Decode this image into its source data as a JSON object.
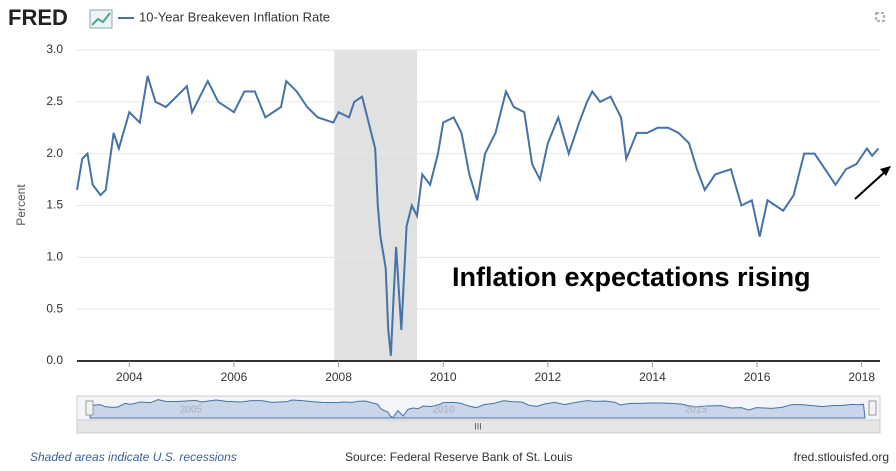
{
  "header": {
    "logo": "FRED",
    "legend": "10-Year Breakeven Inflation Rate"
  },
  "chart_data": {
    "type": "line",
    "title": "10-Year Breakeven Inflation Rate",
    "y_label": "Percent",
    "annotation": "Inflation expectations rising",
    "x": [
      2003.0,
      2003.1,
      2003.2,
      2003.3,
      2003.45,
      2003.55,
      2003.7,
      2003.8,
      2004.0,
      2004.2,
      2004.35,
      2004.5,
      2004.7,
      2004.9,
      2005.1,
      2005.2,
      2005.5,
      2005.7,
      2006.0,
      2006.2,
      2006.4,
      2006.6,
      2006.9,
      2007.0,
      2007.2,
      2007.4,
      2007.6,
      2007.9,
      2008.0,
      2008.2,
      2008.3,
      2008.45,
      2008.6,
      2008.7,
      2008.75,
      2008.8,
      2008.9,
      2008.95,
      2009.0,
      2009.05,
      2009.1,
      2009.2,
      2009.3,
      2009.4,
      2009.5,
      2009.6,
      2009.75,
      2009.9,
      2010.0,
      2010.2,
      2010.35,
      2010.5,
      2010.65,
      2010.8,
      2011.0,
      2011.2,
      2011.35,
      2011.55,
      2011.7,
      2011.85,
      2012.0,
      2012.2,
      2012.4,
      2012.6,
      2012.75,
      2012.85,
      2013.0,
      2013.2,
      2013.4,
      2013.5,
      2013.7,
      2013.9,
      2014.1,
      2014.3,
      2014.5,
      2014.7,
      2014.85,
      2015.0,
      2015.2,
      2015.5,
      2015.7,
      2015.9,
      2016.05,
      2016.2,
      2016.5,
      2016.7,
      2016.9,
      2017.1,
      2017.3,
      2017.5,
      2017.7,
      2017.9,
      2018.1,
      2018.2,
      2018.32
    ],
    "series": [
      {
        "name": "10-Year Breakeven Inflation Rate",
        "color": "#4572a7",
        "values": [
          1.65,
          1.95,
          2.0,
          1.7,
          1.6,
          1.65,
          2.2,
          2.05,
          2.4,
          2.3,
          2.75,
          2.5,
          2.45,
          2.55,
          2.65,
          2.4,
          2.7,
          2.5,
          2.4,
          2.6,
          2.6,
          2.35,
          2.45,
          2.7,
          2.6,
          2.45,
          2.35,
          2.3,
          2.4,
          2.35,
          2.5,
          2.55,
          2.25,
          2.05,
          1.5,
          1.2,
          0.9,
          0.3,
          0.05,
          0.6,
          1.1,
          0.3,
          1.3,
          1.5,
          1.4,
          1.8,
          1.7,
          2.0,
          2.3,
          2.35,
          2.2,
          1.8,
          1.55,
          2.0,
          2.2,
          2.6,
          2.45,
          2.4,
          1.9,
          1.75,
          2.1,
          2.35,
          2.0,
          2.3,
          2.5,
          2.6,
          2.5,
          2.55,
          2.35,
          1.95,
          2.2,
          2.2,
          2.25,
          2.25,
          2.2,
          2.1,
          1.85,
          1.65,
          1.8,
          1.85,
          1.5,
          1.55,
          1.2,
          1.55,
          1.45,
          1.6,
          2.0,
          2.0,
          1.85,
          1.7,
          1.85,
          1.9,
          2.05,
          1.98,
          2.05
        ]
      }
    ],
    "xlim": [
      2003.0,
      2018.35
    ],
    "xticks": [
      2004,
      2006,
      2008,
      2010,
      2012,
      2014,
      2016,
      2018
    ],
    "ylim": [
      0,
      3
    ],
    "yticks": [
      {
        "value": 0,
        "label": "0.0"
      },
      {
        "value": 0.5,
        "label": "0.5"
      },
      {
        "value": 1,
        "label": "1.0"
      },
      {
        "value": 1.5,
        "label": "1.5"
      },
      {
        "value": 2,
        "label": "2.0"
      },
      {
        "value": 2.5,
        "label": "2.5"
      },
      {
        "value": 3,
        "label": "3.0"
      }
    ],
    "grid": true,
    "recession": [
      2007.92,
      2009.5
    ],
    "recession_color": "#e1e1e1",
    "navigator_ticks": [
      2005,
      2010,
      2015
    ]
  },
  "footer": {
    "note": "Shaded areas indicate U.S. recessions",
    "source": "Source: Federal Reserve Bank of St. Louis",
    "site": "fred.stlouisfed.org"
  }
}
